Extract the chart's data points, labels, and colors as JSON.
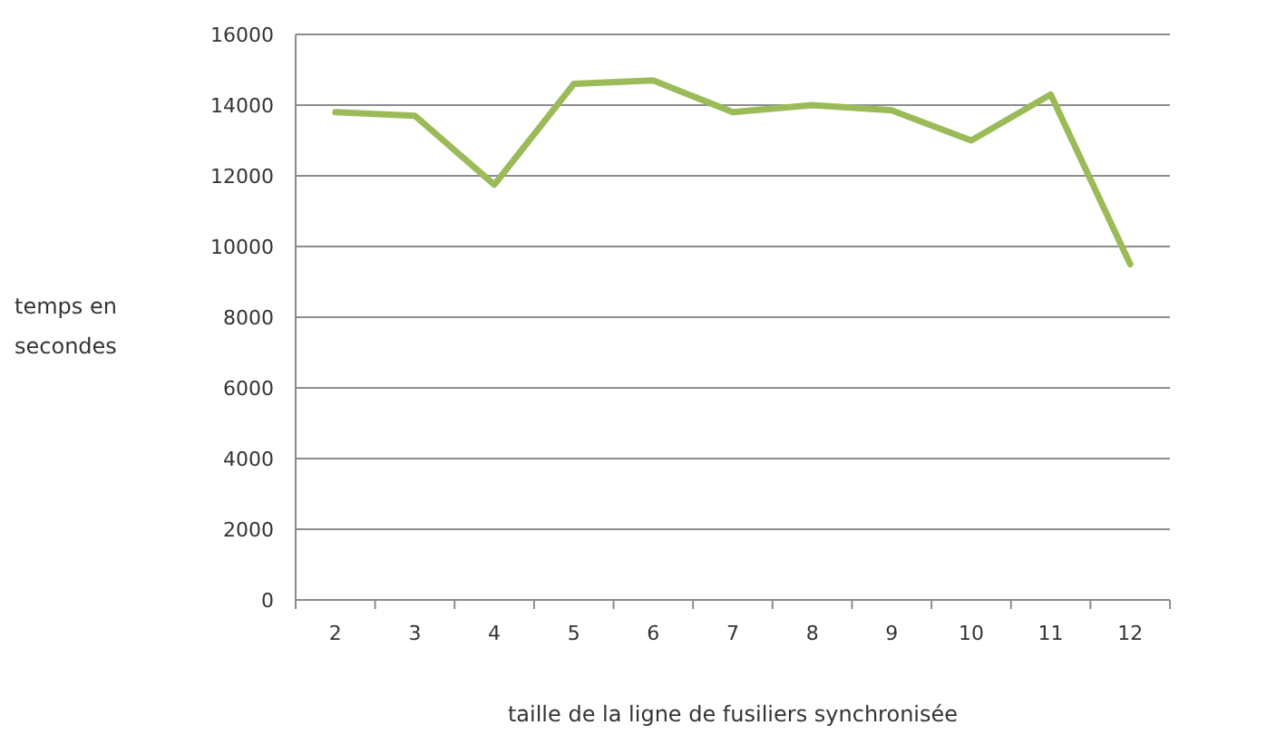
{
  "chart_data": {
    "type": "line",
    "xlabel": "taille de la ligne de fusiliers synchronisée",
    "ylabel": "temps en secondes",
    "categories": [
      "2",
      "3",
      "4",
      "5",
      "6",
      "7",
      "8",
      "9",
      "10",
      "11",
      "12"
    ],
    "series": [
      {
        "color": "#9bbb59",
        "values": [
          13800,
          13700,
          11750,
          14600,
          14700,
          13800,
          14000,
          13850,
          13000,
          14300,
          9500
        ]
      }
    ],
    "ylim": [
      0,
      16000
    ],
    "yticks": [
      0,
      2000,
      4000,
      6000,
      8000,
      10000,
      12000,
      14000,
      16000
    ],
    "grid": "y",
    "marker": "none",
    "line_style": "solid"
  }
}
